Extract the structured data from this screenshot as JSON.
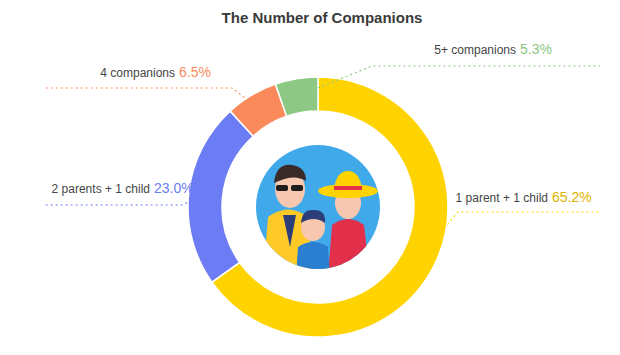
{
  "chart_data": {
    "type": "donut",
    "title": "The Number of Companions",
    "categories": [
      "1 parent + 1 child",
      "2 parents + 1 child",
      "4 companions",
      "5+ companions"
    ],
    "values": [
      65.2,
      23.0,
      6.5,
      5.3
    ],
    "value_labels": [
      "65.2%",
      "23.0%",
      "6.5%",
      "5.3%"
    ],
    "colors": [
      "#ffd300",
      "#6c7cf5",
      "#fa8a5c",
      "#8dc984"
    ],
    "data_labels": true
  }
}
